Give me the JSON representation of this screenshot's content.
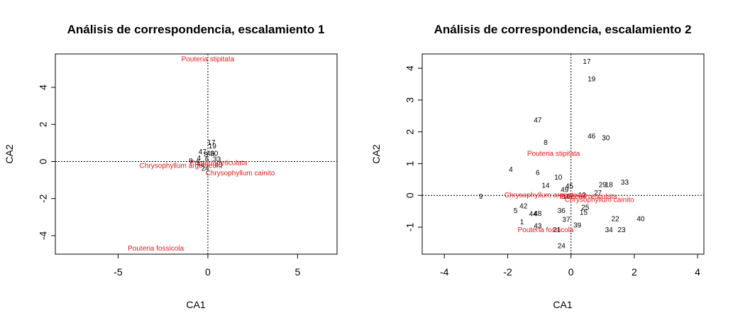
{
  "chart_data": [
    {
      "type": "scatter",
      "title": "Análisis de correspondencia, escalamiento 1",
      "xlabel": "CA1",
      "ylabel": "CA2",
      "xlim": [
        -8.5,
        7.2
      ],
      "ylim": [
        -5.0,
        5.8
      ],
      "x_ticks": [
        -5,
        0,
        5
      ],
      "y_ticks": [
        -4,
        -2,
        0,
        2,
        4
      ],
      "x_tick_labels": [
        "-5",
        "0",
        "5"
      ],
      "y_tick_labels": [
        "-4",
        "-2",
        "0",
        "2",
        "4"
      ],
      "reference_lines": {
        "x": 0,
        "y": 0
      },
      "sites": [
        {
          "label": "17",
          "x": 0.2,
          "y": 1.0
        },
        {
          "label": "19",
          "x": 0.25,
          "y": 0.8
        },
        {
          "label": "47",
          "x": -0.3,
          "y": 0.5
        },
        {
          "label": "46",
          "x": 0.15,
          "y": 0.4
        },
        {
          "label": "30",
          "x": 0.35,
          "y": 0.4
        },
        {
          "label": "8",
          "x": -0.1,
          "y": 0.35
        },
        {
          "label": "6",
          "x": -0.05,
          "y": 0.1
        },
        {
          "label": "4",
          "x": -0.5,
          "y": 0.15
        },
        {
          "label": "33",
          "x": 0.5,
          "y": 0.1
        },
        {
          "label": "9",
          "x": -0.95,
          "y": 0.0
        },
        {
          "label": "5",
          "x": -0.55,
          "y": -0.1
        },
        {
          "label": "42",
          "x": -0.4,
          "y": -0.15
        },
        {
          "label": "40",
          "x": 0.6,
          "y": -0.2
        },
        {
          "label": "24",
          "x": -0.15,
          "y": -0.4
        }
      ],
      "species": [
        {
          "label": "Pouteria stipitata",
          "x": 0.0,
          "y": 5.5
        },
        {
          "label": "Pouteria fossicola",
          "x": -2.9,
          "y": -4.7
        },
        {
          "label": "Chrysophyllum cainito",
          "x": 1.8,
          "y": -0.65
        },
        {
          "label": "Chrysophyllum argenteum",
          "x": -1.5,
          "y": -0.25
        },
        {
          "label": "Pouteria reticulata",
          "x": 0.6,
          "y": -0.1
        }
      ]
    },
    {
      "type": "scatter",
      "title": "Análisis de correspondencia, escalamiento 2",
      "xlabel": "CA1",
      "ylabel": "CA2",
      "xlim": [
        -4.7,
        4.2
      ],
      "ylim": [
        -1.85,
        4.45
      ],
      "x_ticks": [
        -4,
        -2,
        0,
        2,
        4
      ],
      "y_ticks": [
        -1,
        0,
        1,
        2,
        3,
        4
      ],
      "x_tick_labels": [
        "-4",
        "-2",
        "0",
        "2",
        "4"
      ],
      "y_tick_labels": [
        "-1",
        "0",
        "1",
        "2",
        "3",
        "4"
      ],
      "reference_lines": {
        "x": 0,
        "y": 0
      },
      "sites": [
        {
          "label": "17",
          "x": 0.5,
          "y": 4.2
        },
        {
          "label": "19",
          "x": 0.65,
          "y": 3.65
        },
        {
          "label": "47",
          "x": -1.05,
          "y": 2.35
        },
        {
          "label": "46",
          "x": 0.65,
          "y": 1.85
        },
        {
          "label": "30",
          "x": 1.1,
          "y": 1.8
        },
        {
          "label": "8",
          "x": -0.8,
          "y": 1.65
        },
        {
          "label": "4",
          "x": -1.9,
          "y": 0.8
        },
        {
          "label": "6",
          "x": -1.05,
          "y": 0.7
        },
        {
          "label": "10",
          "x": -0.4,
          "y": 0.55
        },
        {
          "label": "33",
          "x": 1.7,
          "y": 0.4
        },
        {
          "label": "29",
          "x": 1.0,
          "y": 0.32
        },
        {
          "label": "18",
          "x": 1.2,
          "y": 0.32
        },
        {
          "label": "14",
          "x": -0.8,
          "y": 0.3
        },
        {
          "label": "45",
          "x": -0.05,
          "y": 0.28
        },
        {
          "label": "49",
          "x": -0.2,
          "y": 0.16
        },
        {
          "label": "27",
          "x": 0.85,
          "y": 0.06
        },
        {
          "label": "12",
          "x": 0.35,
          "y": 0.0
        },
        {
          "label": "9",
          "x": -2.85,
          "y": -0.05
        },
        {
          "label": "16",
          "x": -0.15,
          "y": -0.05
        },
        {
          "label": "42",
          "x": -1.5,
          "y": -0.35
        },
        {
          "label": "5",
          "x": -1.75,
          "y": -0.5
        },
        {
          "label": "36",
          "x": -0.3,
          "y": -0.5
        },
        {
          "label": "44",
          "x": -1.2,
          "y": -0.6
        },
        {
          "label": "48",
          "x": -1.05,
          "y": -0.58
        },
        {
          "label": "25",
          "x": 0.45,
          "y": -0.4
        },
        {
          "label": "15",
          "x": 0.4,
          "y": -0.55
        },
        {
          "label": "37",
          "x": -0.15,
          "y": -0.78
        },
        {
          "label": "1",
          "x": -1.55,
          "y": -0.85
        },
        {
          "label": "39",
          "x": 0.2,
          "y": -0.95
        },
        {
          "label": "22",
          "x": 1.4,
          "y": -0.75
        },
        {
          "label": "40",
          "x": 2.2,
          "y": -0.75
        },
        {
          "label": "43",
          "x": -1.05,
          "y": -0.98
        },
        {
          "label": "21",
          "x": -0.45,
          "y": -1.1
        },
        {
          "label": "34",
          "x": 1.2,
          "y": -1.1
        },
        {
          "label": "23",
          "x": 1.6,
          "y": -1.1
        },
        {
          "label": "24",
          "x": -0.3,
          "y": -1.6
        }
      ],
      "species": [
        {
          "label": "Pouteria stipitata",
          "x": -0.55,
          "y": 1.3
        },
        {
          "label": "Pouteria fossicola",
          "x": -0.8,
          "y": -1.1
        },
        {
          "label": "Chrysophyllum cainito",
          "x": 0.9,
          "y": -0.15
        },
        {
          "label": "Chrysophyllum argenteum",
          "x": -0.8,
          "y": 0.0
        },
        {
          "label": "Pouteria reticulata",
          "x": 0.55,
          "y": -0.05
        }
      ]
    }
  ]
}
